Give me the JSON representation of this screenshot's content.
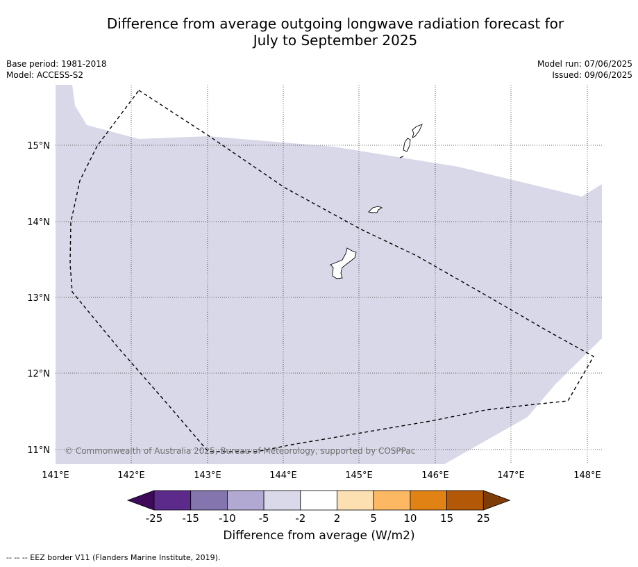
{
  "title_line1": "Difference from average outgoing longwave radiation forecast for",
  "title_line2": "July to September 2025",
  "meta": {
    "base_period": "Base period: 1981-2018",
    "model": "Model: ACCESS-S2",
    "model_run": "Model run: 07/06/2025",
    "issued": "Issued: 09/06/2025"
  },
  "map": {
    "lon_labels": [
      "141°E",
      "142°E",
      "143°E",
      "144°E",
      "145°E",
      "146°E",
      "147°E",
      "148°E"
    ],
    "lat_labels": [
      "15°N",
      "14°N",
      "13°N",
      "12°N",
      "11°N"
    ],
    "copyright": "© Commonwealth of Australia 2025, Bureau of Meteorology, supported by COSPPac",
    "shade_color": "#d8d8e8"
  },
  "colorbar": {
    "tick_labels": [
      "-25",
      "-15",
      "-10",
      "-5",
      "-2",
      "2",
      "5",
      "10",
      "15",
      "25"
    ],
    "colors": [
      "#3e0a5a",
      "#5b2a8a",
      "#8475ae",
      "#b1a9d2",
      "#d9d9ea",
      "#ffffff",
      "#fde0b2",
      "#fdb863",
      "#e08214",
      "#b35806",
      "#7f3b08"
    ],
    "title": "Difference from average (W/m2)"
  },
  "footnote": "--  --  -- EEZ border V11 (Flanders Marine Institute, 2019)."
}
